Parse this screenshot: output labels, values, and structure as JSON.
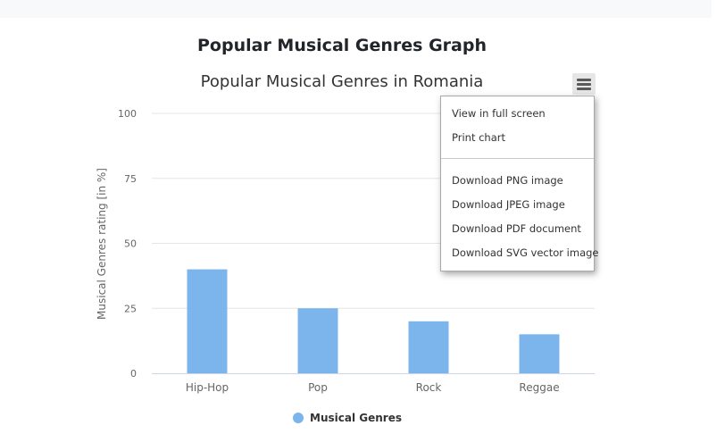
{
  "page": {
    "heading": "Popular Musical Genres Graph"
  },
  "chart_data": {
    "type": "bar",
    "title": "Popular Musical Genres in Romania",
    "categories": [
      "Hip-Hop",
      "Pop",
      "Rock",
      "Reggae"
    ],
    "series": [
      {
        "name": "Musical Genres",
        "values": [
          40,
          25,
          20,
          15
        ],
        "color": "#7cb5ec"
      }
    ],
    "xlabel": "",
    "ylabel": "Musical Genres rating [in %]",
    "ylim": [
      0,
      100
    ],
    "yticks": [
      0,
      25,
      50,
      75,
      100
    ],
    "grid": true,
    "legend": "bottom-center"
  },
  "export_menu": {
    "button_icon": "hamburger-menu-icon",
    "items": [
      "View in full screen",
      "Print chart",
      "Download PNG image",
      "Download JPEG image",
      "Download PDF document",
      "Download SVG vector image"
    ]
  }
}
